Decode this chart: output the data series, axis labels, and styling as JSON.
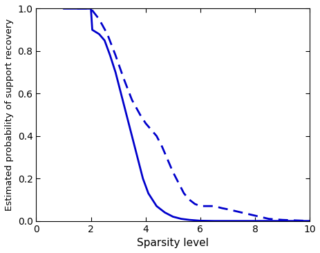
{
  "xlabel": "Sparsity level",
  "ylabel": "Estimated probability of support recovery",
  "xlim": [
    0,
    10
  ],
  "ylim": [
    0,
    1
  ],
  "xticks": [
    0,
    2,
    4,
    6,
    8,
    10
  ],
  "yticks": [
    0,
    0.2,
    0.4,
    0.6,
    0.8,
    1.0
  ],
  "line_color": "#0000CC",
  "solid_x": [
    1.0,
    2.0,
    2.05,
    2.3,
    2.5,
    2.7,
    2.9,
    3.1,
    3.3,
    3.5,
    3.7,
    3.9,
    4.1,
    4.4,
    4.7,
    5.0,
    5.3,
    5.6,
    5.8,
    6.0,
    6.5,
    7.0,
    8.0,
    9.0,
    10.0
  ],
  "solid_y": [
    1.0,
    1.0,
    0.9,
    0.88,
    0.85,
    0.78,
    0.7,
    0.6,
    0.5,
    0.4,
    0.3,
    0.2,
    0.13,
    0.07,
    0.04,
    0.02,
    0.01,
    0.005,
    0.003,
    0.001,
    0.0,
    0.0,
    0.0,
    0.0,
    0.0
  ],
  "dashed_x": [
    1.5,
    2.0,
    2.3,
    2.6,
    2.9,
    3.2,
    3.5,
    3.8,
    4.0,
    4.2,
    4.4,
    4.6,
    4.8,
    5.0,
    5.2,
    5.4,
    5.6,
    5.8,
    6.0,
    6.2,
    6.5,
    6.8,
    7.0,
    7.5,
    8.0,
    8.5,
    9.0,
    10.0
  ],
  "dashed_y": [
    1.0,
    1.0,
    0.95,
    0.88,
    0.78,
    0.67,
    0.57,
    0.5,
    0.46,
    0.43,
    0.4,
    0.35,
    0.29,
    0.23,
    0.18,
    0.13,
    0.1,
    0.08,
    0.07,
    0.07,
    0.07,
    0.06,
    0.055,
    0.04,
    0.025,
    0.01,
    0.005,
    0.0
  ],
  "figsize": [
    4.64,
    3.66
  ],
  "dpi": 100
}
